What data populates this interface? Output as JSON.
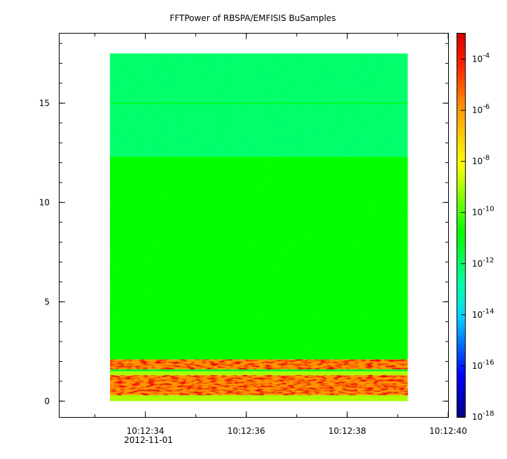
{
  "chart_data": {
    "type": "heatmap",
    "title": "FFTPower of RBSPA/EMFISIS  BuSamples",
    "xlabel": "",
    "ylabel": "",
    "x_axis": {
      "ticks": [
        "10:12:34",
        "10:12:36",
        "10:12:38",
        "10:12:40"
      ],
      "sub_label": "2012-11-01",
      "range": [
        "10:12:32.3",
        "10:12:40.0"
      ]
    },
    "y_axis": {
      "ticks": [
        "0",
        "5",
        "10",
        "15"
      ],
      "range": [
        -0.8,
        18.5
      ]
    },
    "data_extent": {
      "x_start": "10:12:33.3",
      "x_end": "10:12:39.2",
      "y_min": 0,
      "y_max": 17.5
    },
    "colorbar": {
      "scale": "log",
      "range": [
        "1e-18",
        "1e-3"
      ],
      "tick_base": "10",
      "tick_exponents": [
        "-4",
        "-6",
        "-8",
        "-10",
        "-12",
        "-14",
        "-16",
        "-18"
      ]
    },
    "bands": [
      {
        "y_from": 0,
        "y_to": 0.3,
        "level": "1e-9"
      },
      {
        "y_from": 0.3,
        "y_to": 1.3,
        "level": "1e-6"
      },
      {
        "y_from": 1.3,
        "y_to": 1.5,
        "level": "1e-9"
      },
      {
        "y_from": 1.5,
        "y_to": 1.6,
        "level": "1e-11"
      },
      {
        "y_from": 1.6,
        "y_to": 2.1,
        "level": "1e-6"
      },
      {
        "y_from": 2.1,
        "y_to": 12.3,
        "level": "1e-10"
      },
      {
        "y_from": 12.3,
        "y_to": 17.5,
        "level": "1e-12"
      }
    ],
    "annotations": [
      {
        "y": 15.0,
        "level": "1e-11",
        "description": "narrow line"
      }
    ],
    "grid": false
  }
}
